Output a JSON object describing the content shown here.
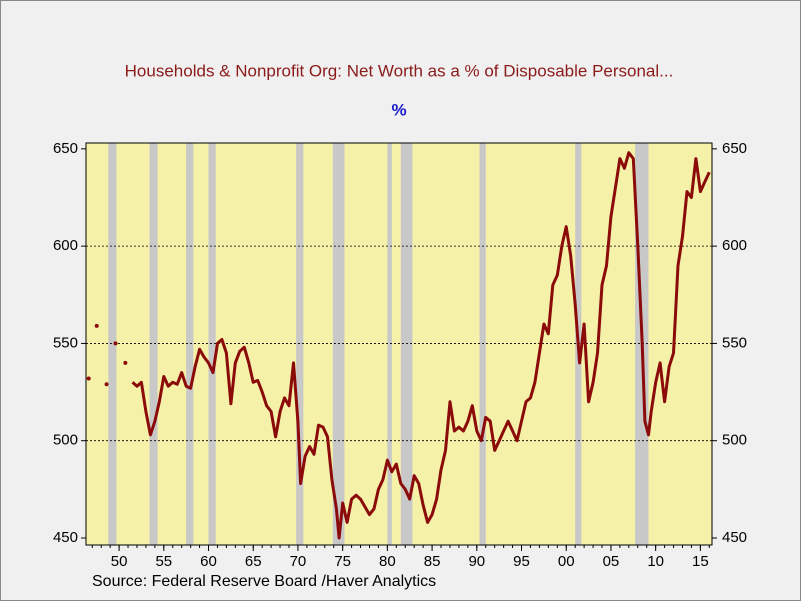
{
  "chart_data": {
    "type": "line",
    "title": "Households & Nonprofit Org: Net Worth as a % of Disposable Personal...",
    "subtitle": "%",
    "source": "Source:  Federal Reserve Board /Haver Analytics",
    "color": "#8b0a0a",
    "background": "#f5f1a9",
    "recession_color": "#c8c8c8",
    "xlim": [
      1946.3,
      2016.3
    ],
    "ylim": [
      446.4,
      653
    ],
    "yticks": [
      450,
      500,
      550,
      600,
      650
    ],
    "grid": true,
    "xticks": [
      {
        "value": 1950,
        "label": "50"
      },
      {
        "value": 1955,
        "label": "55"
      },
      {
        "value": 1960,
        "label": "60"
      },
      {
        "value": 1965,
        "label": "65"
      },
      {
        "value": 1970,
        "label": "70"
      },
      {
        "value": 1975,
        "label": "75"
      },
      {
        "value": 1980,
        "label": "80"
      },
      {
        "value": 1985,
        "label": "85"
      },
      {
        "value": 1990,
        "label": "90"
      },
      {
        "value": 1995,
        "label": "95"
      },
      {
        "value": 2000,
        "label": "00"
      },
      {
        "value": 2005,
        "label": "05"
      },
      {
        "value": 2010,
        "label": "10"
      },
      {
        "value": 2015,
        "label": "15"
      }
    ],
    "recessions": [
      [
        1948.8,
        1949.7
      ],
      [
        1953.4,
        1954.3
      ],
      [
        1957.5,
        1958.3
      ],
      [
        1960.0,
        1960.8
      ],
      [
        1969.8,
        1970.6
      ],
      [
        1973.9,
        1975.2
      ],
      [
        1980.0,
        1980.5
      ],
      [
        1981.5,
        1982.8
      ],
      [
        1990.3,
        1991.0
      ],
      [
        2001.0,
        2001.7
      ],
      [
        2007.7,
        2009.2
      ]
    ],
    "x": [
      1946.6,
      1947.0,
      1947.5,
      1948.0,
      1948.6,
      1949.0,
      1949.6,
      1950.0,
      1950.7,
      1951.0,
      1951.5,
      1952,
      1952.5,
      1953,
      1953.5,
      1954,
      1954.5,
      1955,
      1955.5,
      1956,
      1956.5,
      1957,
      1957.5,
      1958,
      1958.5,
      1959,
      1959.5,
      1960,
      1960.5,
      1961,
      1961.5,
      1962,
      1962.5,
      1963,
      1963.5,
      1964,
      1964.5,
      1965,
      1965.5,
      1966,
      1966.5,
      1967,
      1967.5,
      1968,
      1968.5,
      1969,
      1969.5,
      1970,
      1970.3,
      1970.8,
      1971.3,
      1971.8,
      1972.3,
      1972.8,
      1973.3,
      1973.8,
      1974.3,
      1974.6,
      1975,
      1975.5,
      1976,
      1976.5,
      1977,
      1977.5,
      1978,
      1978.5,
      1979,
      1979.5,
      1980,
      1980.5,
      1981,
      1981.5,
      1982,
      1982.5,
      1983,
      1983.5,
      1984,
      1984.5,
      1985,
      1985.5,
      1986,
      1986.5,
      1987,
      1987.5,
      1988,
      1988.5,
      1989,
      1989.5,
      1990,
      1990.5,
      1991,
      1991.5,
      1992,
      1992.5,
      1993,
      1993.5,
      1994,
      1994.5,
      1995,
      1995.5,
      1996,
      1996.5,
      1997,
      1997.5,
      1998,
      1998.5,
      1999,
      1999.5,
      2000,
      2000.5,
      2001,
      2001.5,
      2002,
      2002.5,
      2003,
      2003.5,
      2004,
      2004.5,
      2005,
      2005.5,
      2006,
      2006.5,
      2007,
      2007.5,
      2008,
      2008.5,
      2008.8,
      2009.2,
      2009.5,
      2010,
      2010.5,
      2011,
      2011.5,
      2012,
      2012.5,
      2013,
      2013.5,
      2014,
      2014.5,
      2015,
      2015.5,
      2016
    ],
    "values": [
      532,
      null,
      559,
      null,
      529,
      null,
      550,
      null,
      540,
      null,
      530,
      528,
      530,
      515,
      503,
      510,
      520,
      533,
      528,
      530,
      529,
      535,
      528,
      527,
      538,
      547,
      543,
      540,
      535,
      550,
      552,
      545,
      519,
      540,
      546,
      548,
      540,
      530,
      531,
      525,
      518,
      515,
      502,
      515,
      522,
      518,
      540,
      510,
      478,
      492,
      497,
      493,
      508,
      507,
      502,
      480,
      465,
      450,
      468,
      458,
      470,
      472,
      470,
      466,
      462,
      465,
      475,
      480,
      490,
      484,
      488,
      478,
      475,
      470,
      482,
      478,
      467,
      458,
      462,
      470,
      485,
      495,
      520,
      505,
      507,
      505,
      510,
      518,
      505,
      500,
      512,
      510,
      495,
      500,
      505,
      510,
      505,
      500,
      510,
      520,
      522,
      530,
      545,
      560,
      555,
      580,
      585,
      600,
      610,
      595,
      570,
      540,
      560,
      520,
      530,
      545,
      580,
      590,
      615,
      630,
      645,
      640,
      648,
      645,
      600,
      550,
      510,
      503,
      515,
      530,
      540,
      520,
      538,
      545,
      590,
      605,
      628,
      625,
      645,
      628,
      633,
      638
    ]
  }
}
